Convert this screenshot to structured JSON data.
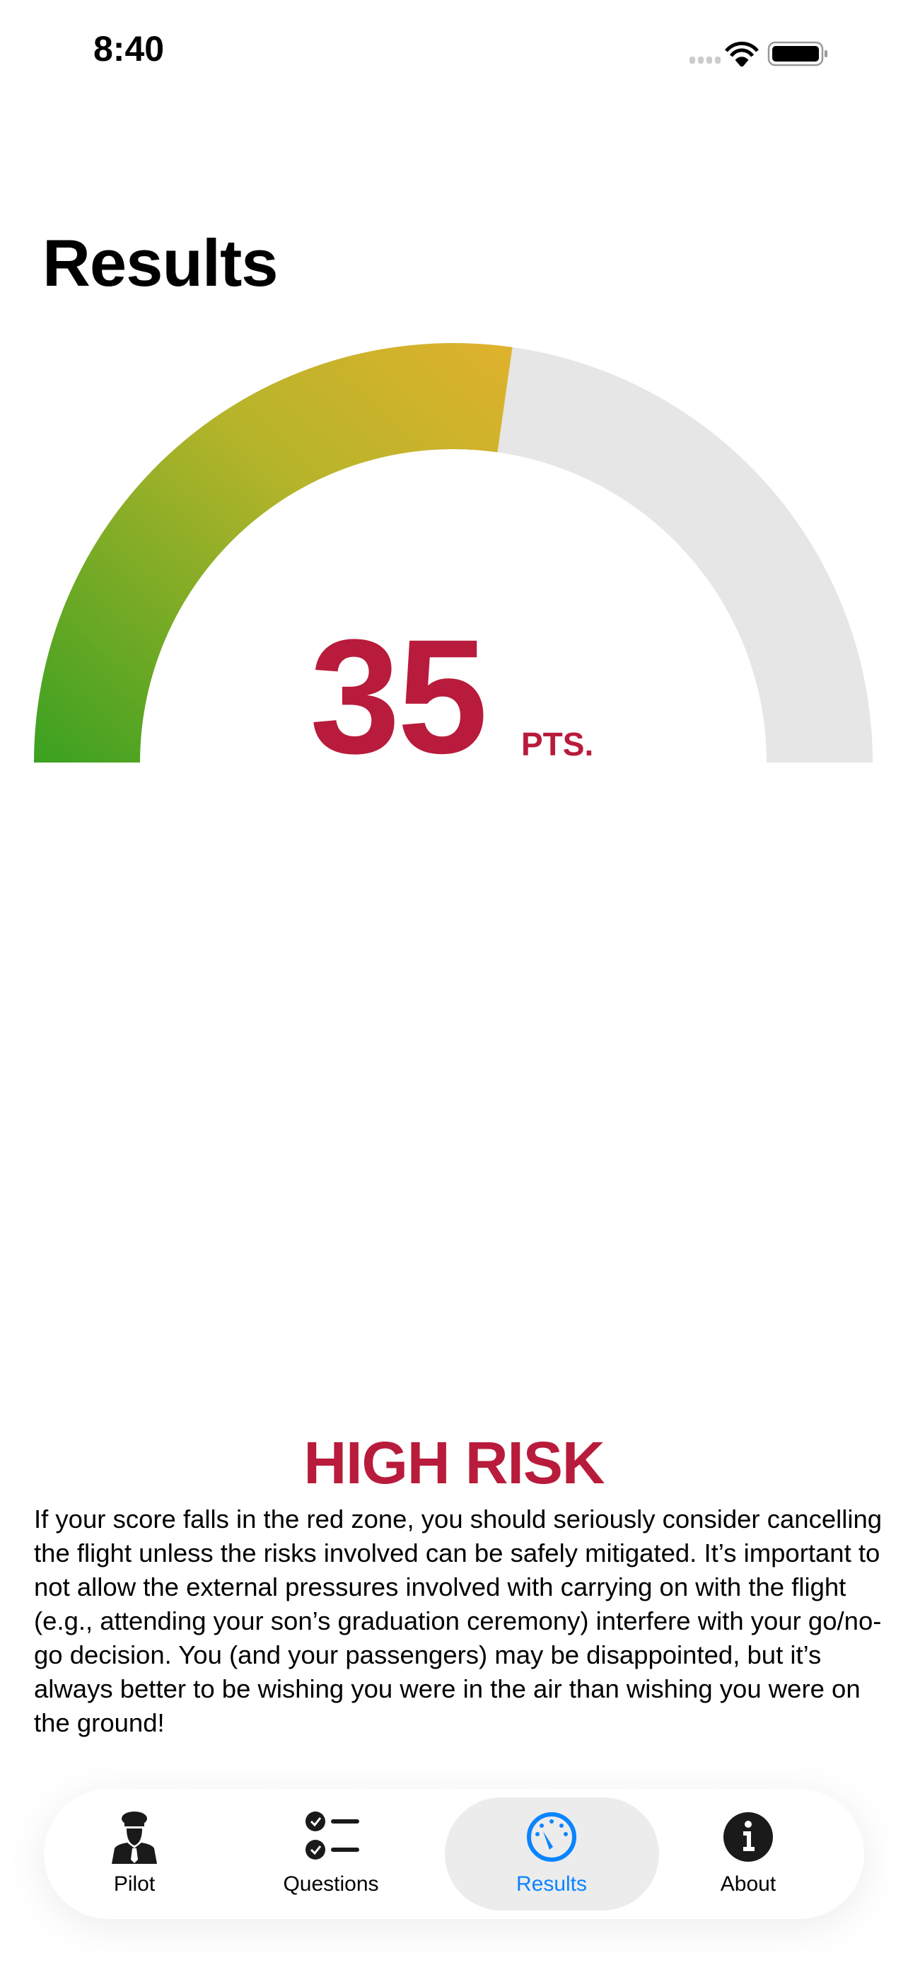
{
  "status_bar": {
    "time": "8:40"
  },
  "header": {
    "title": "Results"
  },
  "gauge": {
    "score": "35",
    "unit": "PTS.",
    "fill_fraction": 0.545,
    "colors": {
      "start": "#3AA121",
      "mid": "#B4B42A",
      "end": "#E0B22C",
      "track": "#E6E6E6",
      "score": "#B81B3B"
    }
  },
  "result": {
    "level": "HIGH RISK",
    "description": "If your score falls in the red zone, you should seriously consider cancelling the flight unless the risks involved can be safely mitigated. It’s important to not allow the external pressures involved with carrying on with the flight (e.g., attending your son’s graduation ceremony) interfere with your go/no-go decision. You (and your passengers) may be disappointed, but it’s always better to be wishing you were in the air than wishing you were on the ground!"
  },
  "tabs": [
    {
      "label": "Pilot",
      "icon": "pilot-icon"
    },
    {
      "label": "Questions",
      "icon": "checklist-icon"
    },
    {
      "label": "Results",
      "icon": "gauge-icon",
      "selected": true
    },
    {
      "label": "About",
      "icon": "info-icon"
    }
  ],
  "accent": "#0A84FF"
}
